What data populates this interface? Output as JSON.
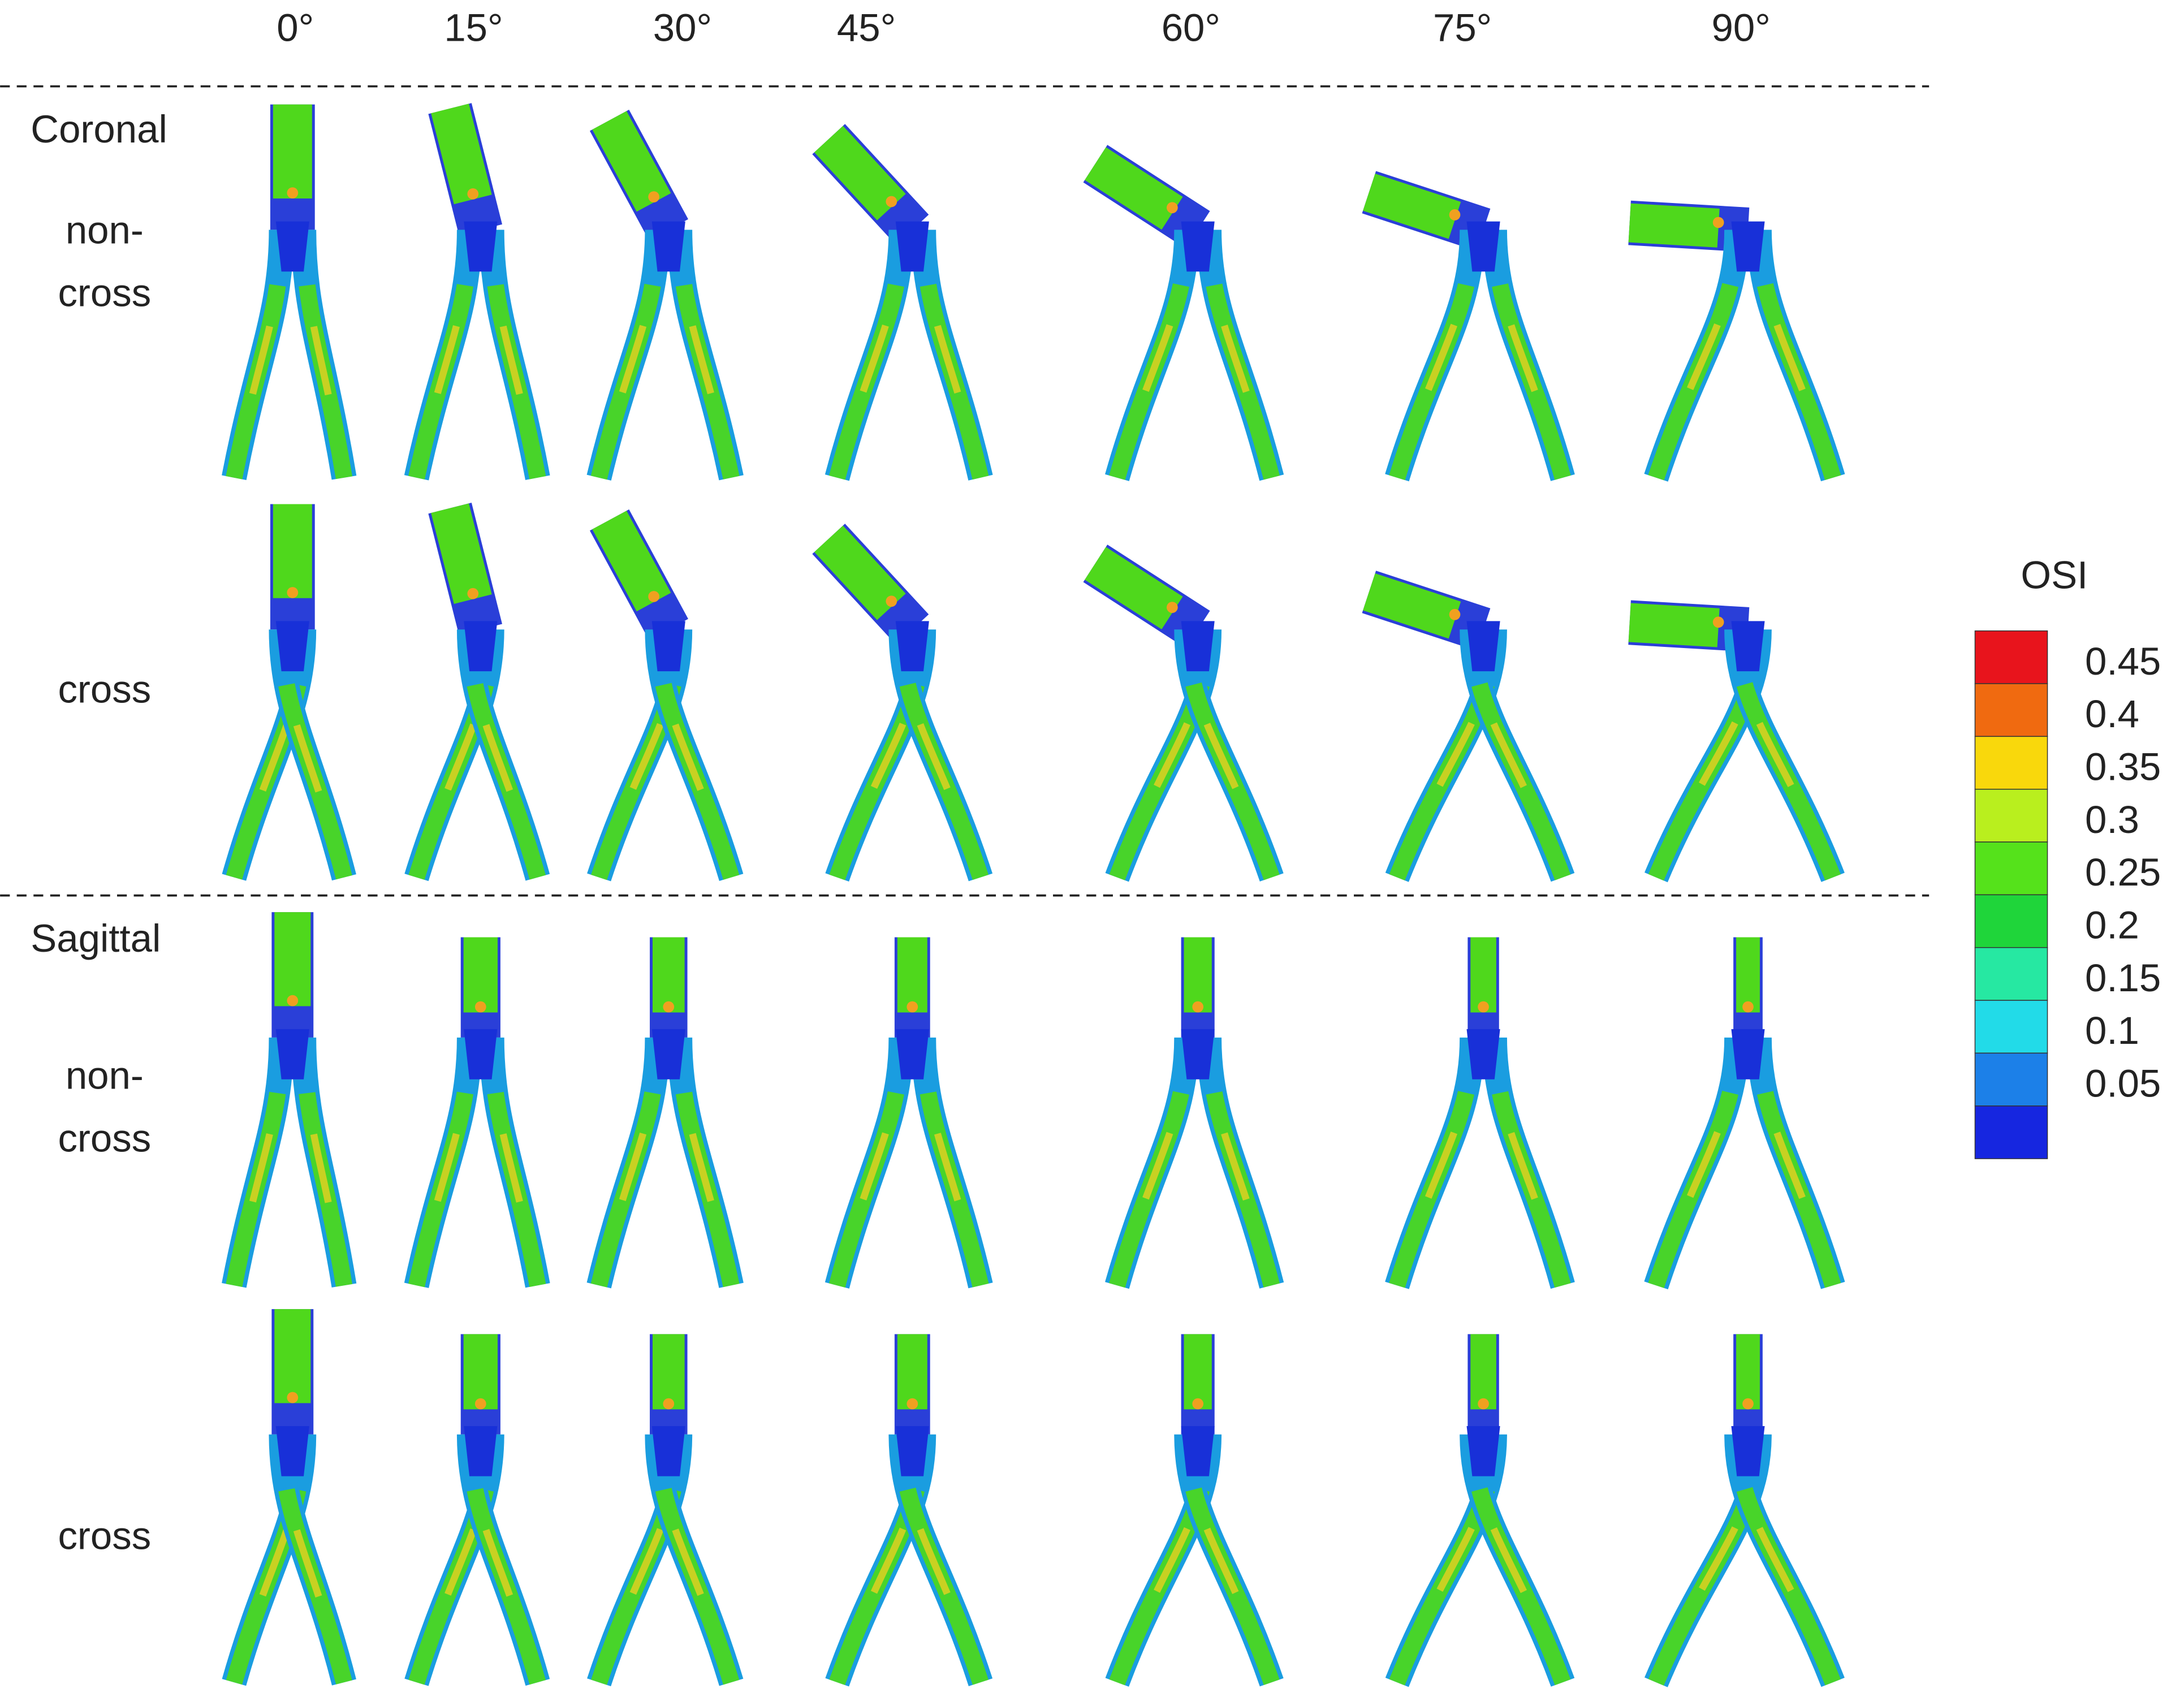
{
  "columns": [
    "0°",
    "15°",
    "30°",
    "45°",
    "60°",
    "75°",
    "90°"
  ],
  "sections": [
    {
      "label": "Coronal",
      "rows": [
        [
          "non-",
          "cross"
        ],
        [
          "cross"
        ]
      ]
    },
    {
      "label": "Sagittal",
      "rows": [
        [
          "non-",
          "cross"
        ],
        [
          "cross"
        ]
      ]
    }
  ],
  "colorbar": {
    "title": "OSI",
    "labels": [
      "0.45",
      "0.4",
      "0.35",
      "0.3",
      "0.25",
      "0.2",
      "0.15",
      "0.1",
      "0.05"
    ]
  }
}
